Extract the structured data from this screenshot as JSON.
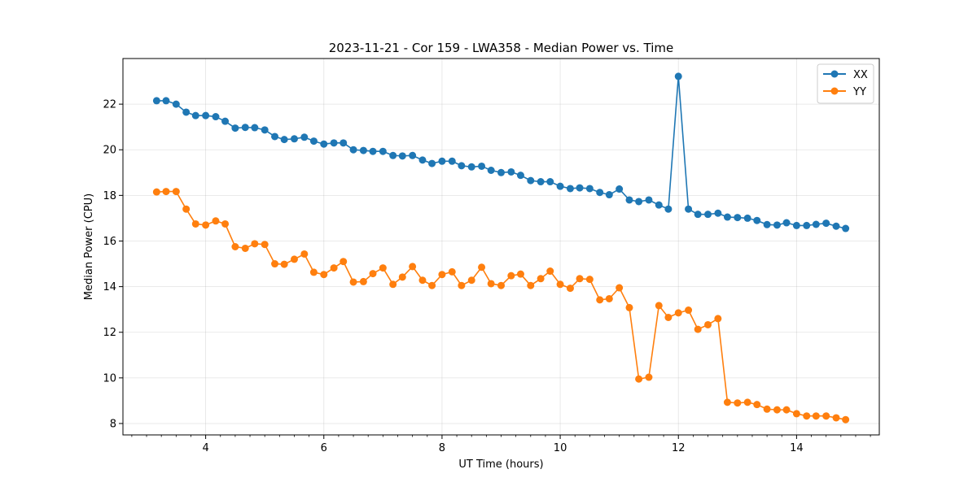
{
  "chart_data": {
    "type": "line",
    "title": "2023-11-21 - Cor 159 - LWA358 - Median Power vs. Time",
    "xlabel": "UT Time (hours)",
    "ylabel": "Median Power (CPU)",
    "xlim": [
      2.6,
      15.4
    ],
    "ylim": [
      7.5,
      24.0
    ],
    "xticks": [
      4,
      6,
      8,
      10,
      12,
      14
    ],
    "yticks": [
      8,
      10,
      12,
      14,
      16,
      18,
      20,
      22
    ],
    "grid": true,
    "legend_position": "top-right",
    "x": [
      3.17,
      3.33,
      3.5,
      3.67,
      3.83,
      4.0,
      4.17,
      4.33,
      4.5,
      4.67,
      4.83,
      5.0,
      5.17,
      5.33,
      5.5,
      5.67,
      5.83,
      6.0,
      6.17,
      6.33,
      6.5,
      6.67,
      6.83,
      7.0,
      7.17,
      7.33,
      7.5,
      7.67,
      7.83,
      8.0,
      8.17,
      8.33,
      8.5,
      8.67,
      8.83,
      9.0,
      9.17,
      9.33,
      9.5,
      9.67,
      9.83,
      10.0,
      10.17,
      10.33,
      10.5,
      10.67,
      10.83,
      11.0,
      11.17,
      11.33,
      11.5,
      11.67,
      11.83,
      12.0,
      12.17,
      12.33,
      12.5,
      12.67,
      12.83,
      13.0,
      13.17,
      13.33,
      13.5,
      13.67,
      13.83,
      14.0,
      14.17,
      14.33,
      14.5,
      14.67,
      14.83
    ],
    "series": [
      {
        "name": "XX",
        "color": "#1f77b4",
        "values": [
          22.15,
          22.15,
          22.0,
          21.65,
          21.5,
          21.5,
          21.45,
          21.25,
          20.95,
          20.98,
          20.97,
          20.87,
          20.58,
          20.45,
          20.48,
          20.55,
          20.38,
          20.25,
          20.3,
          20.3,
          20.0,
          19.97,
          19.93,
          19.93,
          19.75,
          19.73,
          19.75,
          19.55,
          19.4,
          19.5,
          19.5,
          19.3,
          19.25,
          19.28,
          19.1,
          19.0,
          19.03,
          18.88,
          18.65,
          18.6,
          18.6,
          18.4,
          18.3,
          18.33,
          18.3,
          18.13,
          18.03,
          18.28,
          17.8,
          17.73,
          17.8,
          17.58,
          17.4,
          23.22,
          17.4,
          17.17,
          17.17,
          17.22,
          17.05,
          17.03,
          17.0,
          16.9,
          16.72,
          16.7,
          16.8,
          16.68,
          16.68,
          16.73,
          16.78,
          16.65,
          16.55
        ]
      },
      {
        "name": "YY",
        "color": "#ff7f0e",
        "values": [
          18.15,
          18.17,
          18.17,
          17.4,
          16.75,
          16.7,
          16.88,
          16.75,
          15.75,
          15.68,
          15.88,
          15.85,
          15.0,
          14.98,
          15.2,
          15.43,
          14.63,
          14.53,
          14.82,
          15.1,
          14.2,
          14.22,
          14.57,
          14.82,
          14.1,
          14.42,
          14.88,
          14.28,
          14.05,
          14.53,
          14.65,
          14.05,
          14.28,
          14.85,
          14.13,
          14.05,
          14.48,
          14.55,
          14.05,
          14.35,
          14.68,
          14.1,
          13.93,
          14.35,
          14.32,
          13.42,
          13.47,
          13.95,
          13.08,
          9.95,
          10.03,
          13.17,
          12.65,
          12.85,
          12.97,
          12.13,
          12.33,
          12.6,
          8.93,
          8.9,
          8.93,
          8.83,
          8.63,
          8.6,
          8.6,
          8.43,
          8.33,
          8.33,
          8.33,
          8.25,
          8.17
        ]
      }
    ]
  }
}
